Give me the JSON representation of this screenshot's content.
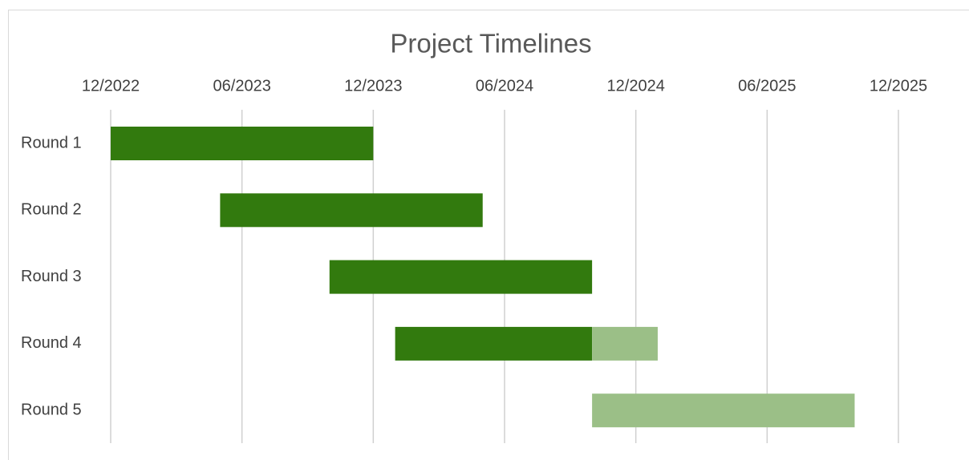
{
  "chart_data": {
    "type": "gantt",
    "title": "Project Timelines",
    "categories": [
      "Round 1",
      "Round 2",
      "Round 3",
      "Round 4",
      "Round 5"
    ],
    "series": [
      {
        "color": "#327a0e",
        "start": [
          "2022-12",
          "2023-05",
          "2023-10",
          "2024-01",
          null
        ],
        "end": [
          "2023-12",
          "2024-05",
          "2024-10",
          "2024-10",
          null
        ]
      },
      {
        "color": "#9bbf87",
        "start": [
          null,
          null,
          null,
          "2024-10",
          "2024-10"
        ],
        "end": [
          null,
          null,
          null,
          "2025-01",
          "2025-10"
        ]
      }
    ],
    "xlim": [
      "2022-12",
      "2025-12"
    ],
    "xticks": [
      {
        "value": "2022-12",
        "label": "12/2022"
      },
      {
        "value": "2023-06",
        "label": "06/2023"
      },
      {
        "value": "2023-12",
        "label": "12/2023"
      },
      {
        "value": "2024-06",
        "label": "06/2024"
      },
      {
        "value": "2024-12",
        "label": "12/2024"
      },
      {
        "value": "2025-06",
        "label": "06/2025"
      },
      {
        "value": "2025-12",
        "label": "12/2025"
      }
    ],
    "grid": true
  }
}
